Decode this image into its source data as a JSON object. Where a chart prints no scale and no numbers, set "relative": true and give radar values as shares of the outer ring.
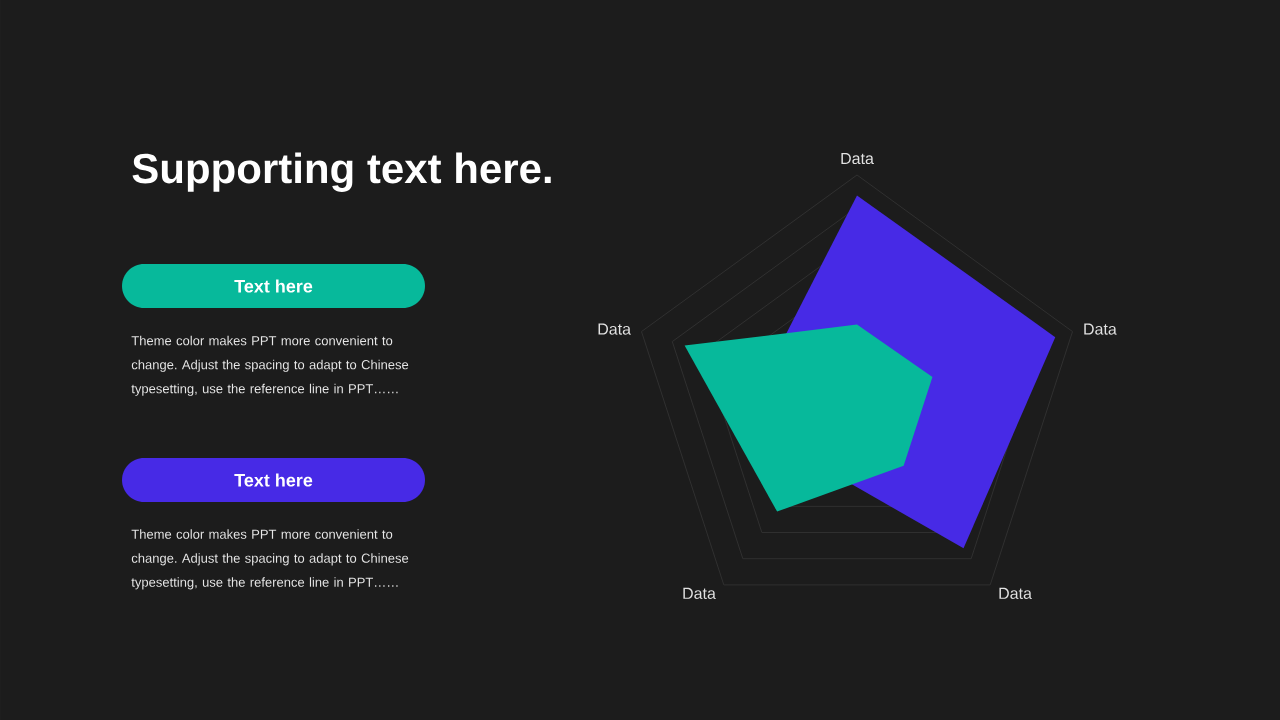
{
  "chart_data": {
    "type": "radar",
    "title": "Supporting text here.",
    "categories": [
      "Data",
      "Data",
      "Data",
      "Data",
      "Data"
    ],
    "relative": true,
    "series": [
      {
        "name": "Text here",
        "color": "#07b99b",
        "values": [
          0.34,
          0.35,
          0.35,
          0.6,
          0.8
        ]
      },
      {
        "name": "Text here",
        "color": "#472ae6",
        "values": [
          0.91,
          0.92,
          0.8,
          0.33,
          0.42
        ]
      }
    ],
    "legend": "left",
    "grid": true,
    "annotations": [
      "Theme color makes PPT more convenient to change. Adjust the spacing to adapt to Chinese typesetting, use the reference line in PPT……",
      "Theme color makes PPT more convenient to change. Adjust the spacing to adapt to Chinese typesetting, use the reference line in PPT……"
    ]
  }
}
